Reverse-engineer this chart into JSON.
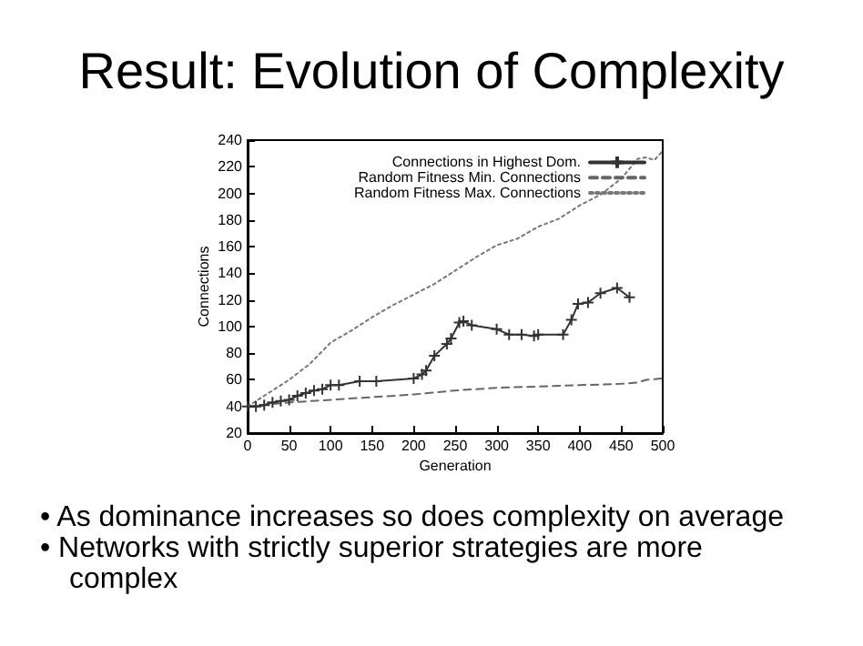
{
  "chart_data": {
    "type": "line",
    "title": "Result: Evolution of Complexity",
    "xlabel": "Generation",
    "ylabel": "Connections",
    "xlim": [
      0,
      500
    ],
    "xticks": [
      0,
      50,
      100,
      150,
      200,
      250,
      300,
      350,
      400,
      450,
      500
    ],
    "ylim": [
      20,
      240
    ],
    "yticks": [
      20,
      40,
      60,
      80,
      100,
      120,
      140,
      160,
      180,
      200,
      220,
      240
    ],
    "grid": false,
    "legend": "top right",
    "series": [
      {
        "name": "Connections in Highest Dom.",
        "color": "#333333",
        "marker": "cross",
        "line_style": "solid",
        "x": [
          0,
          10,
          20,
          30,
          40,
          50,
          60,
          70,
          80,
          90,
          100,
          110,
          135,
          155,
          200,
          210,
          215,
          225,
          240,
          245,
          255,
          260,
          270,
          300,
          315,
          330,
          345,
          350,
          380,
          390,
          398,
          410,
          425,
          445,
          460
        ],
        "values": [
          40,
          40,
          41,
          43,
          44,
          45,
          48,
          50,
          52,
          53,
          56,
          56,
          59,
          59,
          61,
          64,
          67,
          78,
          87,
          91,
          103,
          104,
          101,
          98,
          94,
          94,
          93,
          94,
          94,
          105,
          117,
          118,
          125,
          129,
          122
        ]
      },
      {
        "name": "Random Fitness Min. Connections",
        "color": "#666666",
        "marker": "none",
        "line_style": "dashed",
        "x": [
          0,
          50,
          100,
          150,
          200,
          250,
          300,
          350,
          400,
          450,
          470,
          480,
          500
        ],
        "values": [
          40,
          43,
          45,
          47,
          49,
          52,
          54,
          55,
          56,
          57,
          58,
          60,
          61
        ]
      },
      {
        "name": "Random Fitness Max. Connections",
        "color": "#777777",
        "marker": "none",
        "line_style": "dotted",
        "x": [
          0,
          25,
          50,
          75,
          100,
          125,
          150,
          175,
          200,
          225,
          250,
          275,
          300,
          325,
          350,
          375,
          400,
          425,
          450,
          470,
          480,
          490,
          500
        ],
        "values": [
          40,
          50,
          60,
          72,
          88,
          97,
          107,
          116,
          124,
          132,
          142,
          152,
          161,
          166,
          175,
          181,
          191,
          199,
          211,
          226,
          227,
          225,
          232
        ]
      }
    ],
    "annotations": [
      "• As dominance increases so does complexity on average",
      "• Networks with strictly superior strategies are more complex"
    ]
  }
}
